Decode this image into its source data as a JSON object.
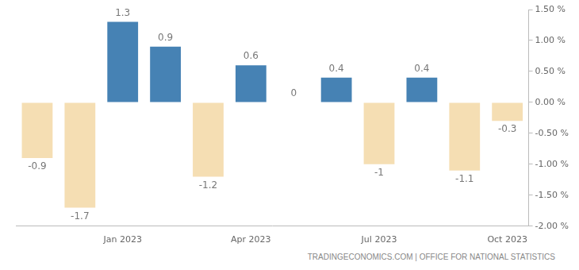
{
  "chart_data": {
    "type": "bar",
    "source": "TRADINGECONOMICS.COM | OFFICE FOR NATIONAL STATISTICS",
    "categories": [
      null,
      null,
      "Jan 2023",
      null,
      null,
      "Apr 2023",
      null,
      null,
      "Jul 2023",
      null,
      null,
      "Oct 2023"
    ],
    "values": [
      -0.9,
      -1.7,
      1.3,
      0.9,
      -1.2,
      0.6,
      0,
      0.4,
      -1,
      0.4,
      -1.1,
      -0.3
    ],
    "colors": [
      "#f5deb3",
      "#f5deb3",
      "#4682b4",
      "#4682b4",
      "#f5deb3",
      "#4682b4",
      "#4682b4",
      "#4682b4",
      "#f5deb3",
      "#4682b4",
      "#f5deb3",
      "#f5deb3"
    ],
    "ylim": [
      -2,
      1.5
    ],
    "yticks": [
      {
        "value": -2,
        "label": "-2.00 %"
      },
      {
        "value": -1.5,
        "label": "-1.50 %"
      },
      {
        "value": -1,
        "label": "-1.00 %"
      },
      {
        "value": -0.5,
        "label": "-0.50 %"
      },
      {
        "value": 0,
        "label": "0.00 %"
      },
      {
        "value": 0.5,
        "label": "0.50 %"
      },
      {
        "value": 1,
        "label": "1.00 %"
      },
      {
        "value": 1.5,
        "label": "1.50 %"
      }
    ],
    "grid": false,
    "data_labels": true
  }
}
